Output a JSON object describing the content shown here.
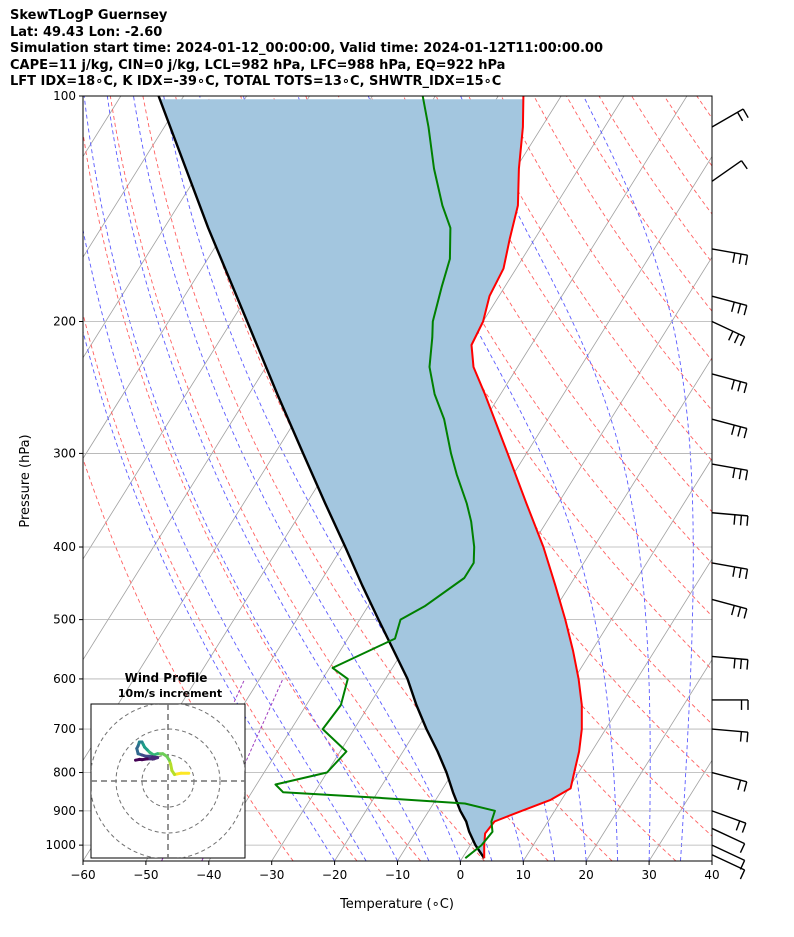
{
  "header": {
    "title": "SkewTLogP Guernsey",
    "location": "Lat: 49.43   Lon: -2.60",
    "times": "Simulation start time: 2024-01-12_00:00:00, Valid time: 2024-01-12T11:00:00.00",
    "indices1": "CAPE=11 j/kg, CIN=0 j/kg, LCL=982 hPa, LFC=988 hPa, EQ=922 hPa",
    "indices2": "LFT IDX=18∘C, K IDX=-39∘C, TOTAL TOTS=13∘C, SHWTR_IDX=15∘C"
  },
  "colors": {
    "temperature": "#ff0000",
    "dewpoint": "#008000",
    "parcel": "#000000",
    "cape_fill": "#a3c6df",
    "dry_adiabat": "#ff6060",
    "moist_adiabat": "#5a5aff",
    "mixing_ratio": "#a040c0",
    "isotherm": "#a0a0a0"
  },
  "chart_data": [
    {
      "type": "line",
      "chart_kind": "skew-T log-P",
      "xlabel": "Temperature (∘C)",
      "ylabel": "Pressure (hPa)",
      "xlim": [
        -60,
        40
      ],
      "ylim": [
        1050,
        100
      ],
      "yscale": "log",
      "xticks": [
        -60,
        -50,
        -40,
        -30,
        -20,
        -10,
        0,
        10,
        20,
        30,
        40
      ],
      "yticks": [
        1000,
        900,
        800,
        700,
        600,
        500,
        400,
        300,
        200,
        100
      ],
      "grid": true,
      "series": [
        {
          "key": "temperature",
          "points": [
            [
              1041,
              3.5
            ],
            [
              1000,
              2.2
            ],
            [
              965,
              1.2
            ],
            [
              930,
              1.5
            ],
            [
              900,
              4.8
            ],
            [
              870,
              8.3
            ],
            [
              840,
              10.3
            ],
            [
              800,
              9.3
            ],
            [
              750,
              8.0
            ],
            [
              700,
              6.2
            ],
            [
              650,
              3.8
            ],
            [
              600,
              0.7
            ],
            [
              550,
              -3.0
            ],
            [
              500,
              -7.3
            ],
            [
              450,
              -12.3
            ],
            [
              400,
              -18.0
            ],
            [
              350,
              -25.0
            ],
            [
              300,
              -33.0
            ],
            [
              250,
              -42.5
            ],
            [
              230,
              -47.0
            ],
            [
              215,
              -49.5
            ],
            [
              200,
              -50.0
            ],
            [
              185,
              -51.5
            ],
            [
              170,
              -52.0
            ],
            [
              155,
              -54.0
            ],
            [
              140,
              -56.0
            ],
            [
              125,
              -59.5
            ],
            [
              110,
              -63.0
            ],
            [
              100,
              -66.0
            ]
          ]
        },
        {
          "key": "dewpoint",
          "points": [
            [
              1041,
              0.5
            ],
            [
              1000,
              1.8
            ],
            [
              960,
              2.2
            ],
            [
              930,
              1.0
            ],
            [
              900,
              0.5
            ],
            [
              880,
              -5.0
            ],
            [
              865,
              -19.0
            ],
            [
              850,
              -35.0
            ],
            [
              830,
              -37.0
            ],
            [
              800,
              -30.0
            ],
            [
              750,
              -29.0
            ],
            [
              700,
              -35.0
            ],
            [
              650,
              -34.5
            ],
            [
              600,
              -36.0
            ],
            [
              580,
              -39.5
            ],
            [
              530,
              -32.5
            ],
            [
              500,
              -33.5
            ],
            [
              480,
              -31.0
            ],
            [
              440,
              -27.5
            ],
            [
              420,
              -27.5
            ],
            [
              400,
              -29.0
            ],
            [
              370,
              -32.0
            ],
            [
              350,
              -34.5
            ],
            [
              320,
              -39.0
            ],
            [
              300,
              -42.0
            ],
            [
              270,
              -46.5
            ],
            [
              250,
              -50.5
            ],
            [
              230,
              -54.0
            ],
            [
              210,
              -56.5
            ],
            [
              200,
              -58.0
            ],
            [
              180,
              -60.0
            ],
            [
              165,
              -61.5
            ],
            [
              150,
              -64.5
            ],
            [
              140,
              -68.0
            ],
            [
              125,
              -73.0
            ],
            [
              110,
              -78.0
            ],
            [
              100,
              -82.0
            ]
          ]
        },
        {
          "key": "parcel",
          "points": [
            [
              1041,
              3.5
            ],
            [
              1000,
              0.8
            ],
            [
              960,
              -1.5
            ],
            [
              930,
              -3.0
            ],
            [
              900,
              -5.0
            ],
            [
              850,
              -8.0
            ],
            [
              800,
              -11.0
            ],
            [
              750,
              -14.5
            ],
            [
              700,
              -18.5
            ],
            [
              650,
              -22.5
            ],
            [
              600,
              -26.5
            ],
            [
              550,
              -31.5
            ],
            [
              500,
              -37.0
            ],
            [
              450,
              -43.0
            ],
            [
              400,
              -49.5
            ],
            [
              350,
              -57.0
            ],
            [
              300,
              -65.5
            ],
            [
              250,
              -75.5
            ],
            [
              200,
              -87.5
            ],
            [
              150,
              -103.0
            ],
            [
              100,
              -124.0
            ]
          ]
        }
      ]
    },
    {
      "type": "line",
      "chart_kind": "hodograph",
      "title": "Wind Profile",
      "subtitle": "10m/s increment",
      "colormap": "viridis",
      "points_uv": [
        [
          8.0,
          3.0
        ],
        [
          5.0,
          3.0
        ],
        [
          2.5,
          2.5
        ],
        [
          1.5,
          4.0
        ],
        [
          1.0,
          6.5
        ],
        [
          0.5,
          8.0
        ],
        [
          -0.5,
          9.5
        ],
        [
          -2.0,
          10.5
        ],
        [
          -4.0,
          10.5
        ],
        [
          -5.5,
          10.0
        ],
        [
          -7.0,
          11.0
        ],
        [
          -8.0,
          12.0
        ],
        [
          -9.0,
          13.0
        ],
        [
          -9.5,
          14.0
        ],
        [
          -10.0,
          15.0
        ],
        [
          -11.0,
          15.0
        ],
        [
          -11.5,
          13.5
        ],
        [
          -12.0,
          12.5
        ],
        [
          -11.5,
          10.5
        ],
        [
          -10.0,
          10.0
        ],
        [
          -8.5,
          9.5
        ],
        [
          -7.0,
          9.5
        ],
        [
          -6.0,
          9.3
        ],
        [
          -4.0,
          9.0
        ],
        [
          -5.5,
          8.5
        ],
        [
          -8.0,
          8.5
        ],
        [
          -10.0,
          8.2
        ],
        [
          -11.0,
          8.3
        ],
        [
          -12.5,
          8.0
        ]
      ]
    }
  ]
}
